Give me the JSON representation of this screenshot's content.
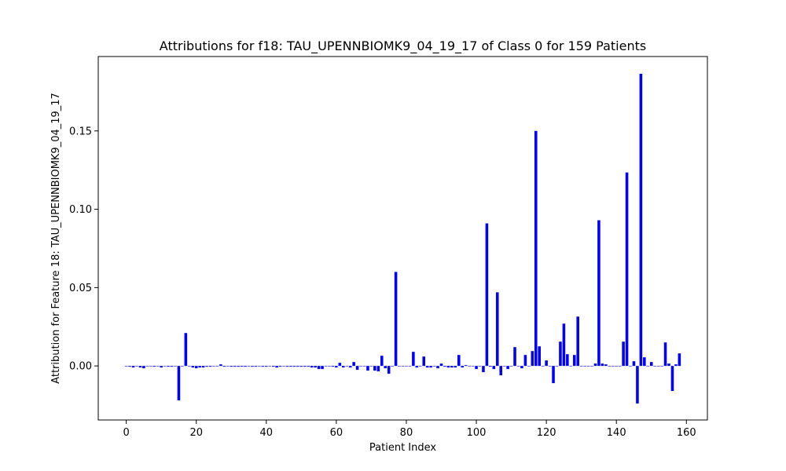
{
  "chart_data": {
    "type": "bar",
    "title": "Attributions for f18: TAU_UPENNBIOMK9_04_19_17 of Class 0 for 159 Patients",
    "xlabel": "Patient Index",
    "ylabel": "Attribution for Feature 18: TAU_UPENNBIOMK9_04_19_17",
    "xlim": [
      -8,
      166
    ],
    "ylim": [
      -0.0345,
      0.1975
    ],
    "x_ticks": [
      0,
      20,
      40,
      60,
      80,
      100,
      120,
      140,
      160
    ],
    "y_ticks": [
      0.0,
      0.05,
      0.1,
      0.15
    ],
    "y_tick_labels": [
      "0.00",
      "0.05",
      "0.10",
      "0.15"
    ],
    "bar_color": "#0000ff",
    "grid": false,
    "legend": "none",
    "x": [
      0,
      1,
      2,
      3,
      4,
      5,
      6,
      7,
      8,
      9,
      10,
      11,
      12,
      13,
      14,
      15,
      16,
      17,
      18,
      19,
      20,
      21,
      22,
      23,
      24,
      25,
      26,
      27,
      28,
      29,
      30,
      31,
      32,
      33,
      34,
      35,
      36,
      37,
      38,
      39,
      40,
      41,
      42,
      43,
      44,
      45,
      46,
      47,
      48,
      49,
      50,
      51,
      52,
      53,
      54,
      55,
      56,
      57,
      58,
      59,
      60,
      61,
      62,
      63,
      64,
      65,
      66,
      67,
      68,
      69,
      70,
      71,
      72,
      73,
      74,
      75,
      76,
      77,
      78,
      79,
      80,
      81,
      82,
      83,
      84,
      85,
      86,
      87,
      88,
      89,
      90,
      91,
      92,
      93,
      94,
      95,
      96,
      97,
      98,
      99,
      100,
      101,
      102,
      103,
      104,
      105,
      106,
      107,
      108,
      109,
      110,
      111,
      112,
      113,
      114,
      115,
      116,
      117,
      118,
      119,
      120,
      121,
      122,
      123,
      124,
      125,
      126,
      127,
      128,
      129,
      130,
      131,
      132,
      133,
      134,
      135,
      136,
      137,
      138,
      139,
      140,
      141,
      142,
      143,
      144,
      145,
      146,
      147,
      148,
      149,
      150,
      151,
      152,
      153,
      154,
      155,
      156,
      157,
      158
    ],
    "values": [
      0,
      -0.0005,
      -0.001,
      0,
      -0.001,
      -0.0015,
      0,
      0,
      -0.0005,
      0,
      -0.001,
      0,
      -0.0005,
      -0.0005,
      0,
      -0.022,
      0,
      0.021,
      0,
      -0.001,
      -0.0015,
      -0.001,
      -0.001,
      -0.0005,
      -0.0005,
      0,
      0,
      0.001,
      -0.0005,
      0,
      -0.0005,
      -0.0005,
      -0.0005,
      -0.0005,
      -0.0005,
      0,
      -0.0005,
      -0.0005,
      0,
      -0.0005,
      -0.0005,
      0,
      -0.0005,
      -0.001,
      -0.0005,
      0,
      -0.0005,
      -0.0005,
      -0.0005,
      -0.0005,
      -0.0005,
      -0.0005,
      -0.0005,
      -0.001,
      -0.001,
      -0.002,
      -0.002,
      0,
      0,
      -0.0005,
      -0.001,
      0.002,
      -0.001,
      0,
      -0.001,
      0.0025,
      -0.0025,
      0,
      0,
      -0.003,
      0,
      -0.003,
      -0.0035,
      0.0065,
      -0.0015,
      -0.005,
      0,
      0.06,
      0,
      0,
      0,
      0,
      0.009,
      -0.001,
      0,
      0.006,
      -0.001,
      -0.001,
      0,
      -0.0015,
      0.0015,
      -0.0005,
      -0.001,
      -0.001,
      -0.001,
      0.007,
      -0.001,
      0.0005,
      0,
      0,
      -0.002,
      0,
      -0.004,
      0.091,
      -0.0005,
      -0.002,
      0.047,
      -0.006,
      0,
      -0.002,
      0,
      0.012,
      0,
      -0.0015,
      0.007,
      0,
      0.0095,
      0.15,
      0.0125,
      0,
      0.0035,
      0,
      -0.011,
      0,
      0.0155,
      0.027,
      0.0075,
      0,
      0.007,
      0.0315,
      0,
      0,
      0,
      0,
      0.0015,
      0.093,
      0.0015,
      0.001,
      0,
      0,
      0,
      0,
      0.0155,
      0.1235,
      0,
      0.003,
      -0.024,
      0.1865,
      0.0055,
      0,
      0.0025,
      0,
      0,
      0,
      0.015,
      0.0015,
      -0.016,
      0.001,
      0.008
    ]
  }
}
